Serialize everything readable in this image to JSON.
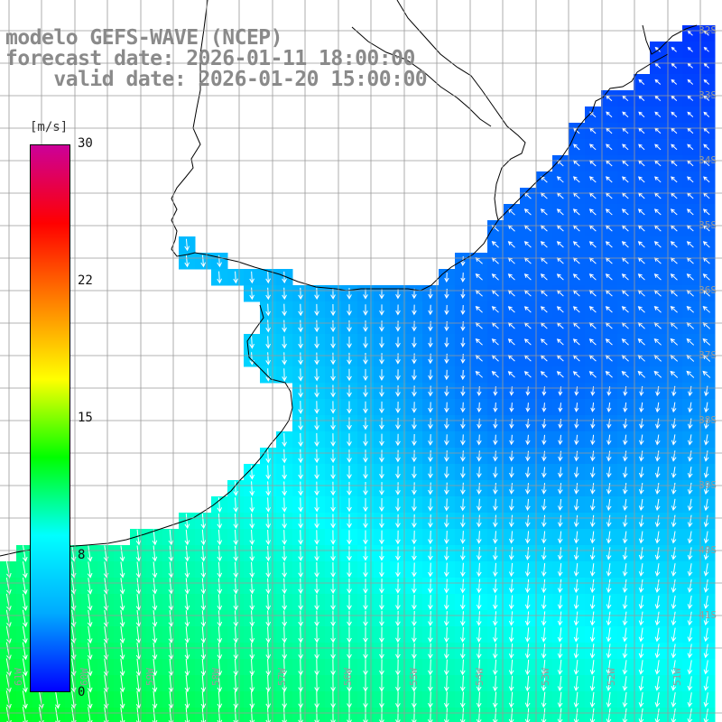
{
  "title": {
    "line1": "modelo GEFS-WAVE (NCEP)",
    "line2": "forecast date: 2026-01-11 18:00:00",
    "line3": "    valid date: 2026-01-20 15:00:00"
  },
  "colorbar": {
    "unit": "[m/s]",
    "ticks": [
      "30",
      "22",
      "15",
      "8",
      "0"
    ],
    "colors": [
      "#0000ff",
      "#00aaff",
      "#00ffff",
      "#00ff00",
      "#ffff00",
      "#ff8000",
      "#ff0000",
      "#cc0099"
    ]
  },
  "grid_labels": {
    "lat": [
      "32S",
      "33S",
      "34S",
      "35S",
      "36S",
      "37S",
      "38S",
      "39S",
      "40S",
      "41S"
    ],
    "lon": [
      "61W",
      "60W",
      "59W",
      "58W",
      "57W",
      "56W",
      "55W",
      "54W",
      "53W",
      "52W",
      "51W"
    ]
  },
  "map_colors": {
    "land": "#ffffff",
    "coast": "#000000",
    "grid": "#9a9a9a",
    "arrow": "#ffffff"
  }
}
